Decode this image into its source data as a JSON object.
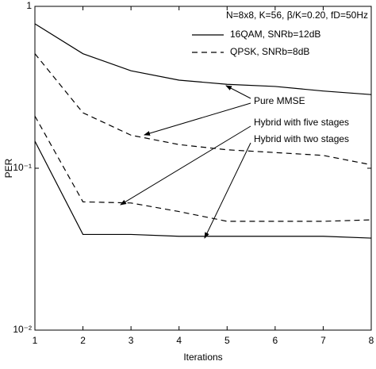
{
  "chart_data": {
    "type": "line",
    "x": [
      1,
      2,
      3,
      4,
      5,
      6,
      7,
      8
    ],
    "series": [
      {
        "color": "#000000",
        "style": "solid",
        "values": [
          0.78,
          0.51,
          0.4,
          0.35,
          0.33,
          0.32,
          0.3,
          0.285
        ]
      },
      {
        "color": "#000000",
        "style": "dashed",
        "values": [
          0.51,
          0.22,
          0.16,
          0.14,
          0.13,
          0.125,
          0.12,
          0.105
        ]
      },
      {
        "color": "#000000",
        "style": "dashed",
        "values": [
          0.21,
          0.062,
          0.061,
          0.054,
          0.047,
          0.047,
          0.047,
          0.048
        ]
      },
      {
        "color": "#000000",
        "style": "solid",
        "values": [
          0.147,
          0.039,
          0.039,
          0.038,
          0.038,
          0.038,
          0.038,
          0.037
        ]
      }
    ],
    "legend_title": "N=8x8, K=56, β/K=0.20, fD=50Hz",
    "legend": [
      {
        "label": "16QAM, SNRb=12dB",
        "style": "solid"
      },
      {
        "label": "QPSK, SNRb=8dB",
        "style": "dashed"
      }
    ],
    "annotations": [
      "Pure MMSE",
      "Hybrid with five stages",
      "Hybrid with two stages"
    ],
    "xlabel": "Iterations",
    "ylabel": "PER",
    "xlim": [
      1,
      8
    ],
    "xticks": [
      1,
      2,
      3,
      4,
      5,
      6,
      7,
      8
    ],
    "ylim": [
      0.01,
      1
    ],
    "yscale": "log",
    "yticks": [
      {
        "value": 0.01,
        "label": "10⁻²"
      },
      {
        "value": 0.1,
        "label": "10⁻¹"
      },
      1
    ]
  }
}
